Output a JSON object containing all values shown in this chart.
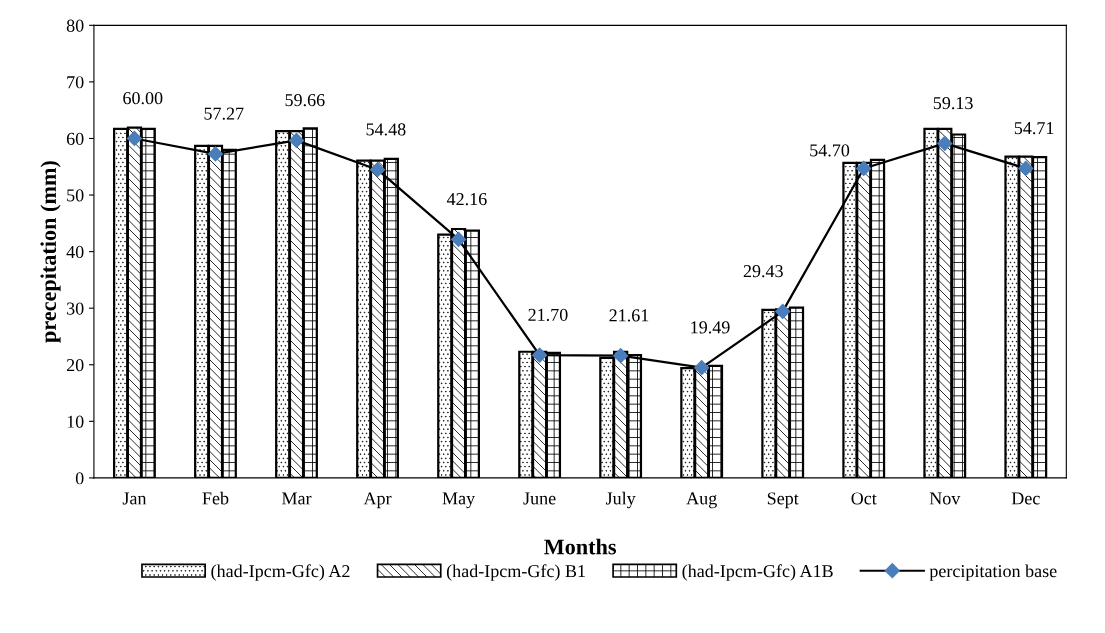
{
  "chart_data": {
    "type": "bar",
    "xlabel": "Months",
    "ylabel": "precepitation (mm)",
    "categories": [
      "Jan",
      "Feb",
      "Mar",
      "Apr",
      "May",
      "June",
      "July",
      "Aug",
      "Sept",
      "Oct",
      "Nov",
      "Dec"
    ],
    "series": [
      {
        "name": "(had-Ipcm-Gfc) A2",
        "color": "#000000",
        "values": [
          61.7,
          58.7,
          61.3,
          56.1,
          43.0,
          22.3,
          21.2,
          19.4,
          29.7,
          55.7,
          61.7,
          56.8
        ]
      },
      {
        "name": "(had-Ipcm-Gfc) B1",
        "color": "#000000",
        "values": [
          61.9,
          58.7,
          61.3,
          56.1,
          44.0,
          22.3,
          22.3,
          19.4,
          29.8,
          55.7,
          61.7,
          56.8
        ]
      },
      {
        "name": "(had-Ipcm-Gfc) A1B",
        "color": "#000000",
        "values": [
          61.7,
          58.0,
          61.8,
          56.4,
          43.7,
          22.1,
          21.7,
          19.8,
          30.1,
          56.2,
          60.7,
          56.7
        ]
      },
      {
        "name": "percipitation base",
        "type": "line",
        "color": "#4a7ebb",
        "marker": "diamond",
        "values": [
          60.0,
          57.27,
          59.66,
          54.48,
          42.16,
          21.7,
          21.61,
          19.49,
          29.43,
          54.7,
          59.13,
          54.71
        ],
        "value_labels": [
          "60.00",
          "57.27",
          "59.66",
          "54.48",
          "42.16",
          "21.70",
          "21.61",
          "19.49",
          "29.43",
          "54.70",
          "59.13",
          "54.71"
        ]
      }
    ],
    "ylim": [
      0,
      80
    ],
    "yticks": [
      0,
      10,
      20,
      30,
      40,
      50,
      60,
      70,
      80
    ],
    "grid": false,
    "legend": "bottom"
  }
}
